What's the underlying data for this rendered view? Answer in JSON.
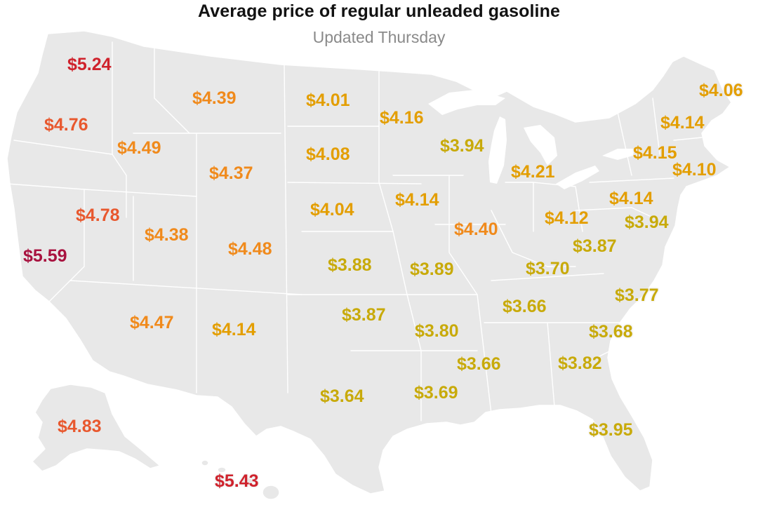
{
  "title": "Average price of regular unleaded gasoline",
  "subtitle": "Updated Thursday",
  "color_scale": {
    "yellow": "#c8aa0a",
    "amber": "#e39e00",
    "orange": "#f08a1c",
    "red_orange": "#e8582e",
    "red": "#cf222c",
    "dark_red": "#a8123f"
  },
  "prices": [
    {
      "state": "WA",
      "label": "$5.24",
      "value": 5.24
    },
    {
      "state": "MT",
      "label": "$4.39",
      "value": 4.39
    },
    {
      "state": "ND",
      "label": "$4.01",
      "value": 4.01
    },
    {
      "state": "ME",
      "label": "$4.06",
      "value": 4.06
    },
    {
      "state": "OR",
      "label": "$4.76",
      "value": 4.76
    },
    {
      "state": "MN",
      "label": "$4.16",
      "value": 4.16
    },
    {
      "state": "NH",
      "label": "$4.14",
      "value": 4.14
    },
    {
      "state": "ID",
      "label": "$4.49",
      "value": 4.49
    },
    {
      "state": "WI",
      "label": "$3.94",
      "value": 3.94
    },
    {
      "state": "SD",
      "label": "$4.08",
      "value": 4.08
    },
    {
      "state": "NY",
      "label": "$4.15",
      "value": 4.15
    },
    {
      "state": "WY",
      "label": "$4.37",
      "value": 4.37
    },
    {
      "state": "MI",
      "label": "$4.21",
      "value": 4.21
    },
    {
      "state": "MA",
      "label": "$4.10",
      "value": 4.1
    },
    {
      "state": "IA",
      "label": "$4.14",
      "value": 4.14
    },
    {
      "state": "PA",
      "label": "$4.14",
      "value": 4.14
    },
    {
      "state": "NE",
      "label": "$4.04",
      "value": 4.04
    },
    {
      "state": "NV",
      "label": "$4.78",
      "value": 4.78
    },
    {
      "state": "OH",
      "label": "$4.12",
      "value": 4.12
    },
    {
      "state": "UT",
      "label": "$4.38",
      "value": 4.38
    },
    {
      "state": "IL",
      "label": "$4.40",
      "value": 4.4
    },
    {
      "state": "MD",
      "label": "$3.94",
      "value": 3.94
    },
    {
      "state": "CA",
      "label": "$5.59",
      "value": 5.59
    },
    {
      "state": "CO",
      "label": "$4.48",
      "value": 4.48
    },
    {
      "state": "WV",
      "label": "$3.87",
      "value": 3.87
    },
    {
      "state": "KS",
      "label": "$3.88",
      "value": 3.88
    },
    {
      "state": "MO",
      "label": "$3.89",
      "value": 3.89
    },
    {
      "state": "KY",
      "label": "$3.70",
      "value": 3.7
    },
    {
      "state": "NC",
      "label": "$3.77",
      "value": 3.77
    },
    {
      "state": "TN",
      "label": "$3.66",
      "value": 3.66
    },
    {
      "state": "OK",
      "label": "$3.87",
      "value": 3.87
    },
    {
      "state": "AZ",
      "label": "$4.47",
      "value": 4.47
    },
    {
      "state": "NM",
      "label": "$4.14",
      "value": 4.14
    },
    {
      "state": "AR",
      "label": "$3.80",
      "value": 3.8
    },
    {
      "state": "SC",
      "label": "$3.68",
      "value": 3.68
    },
    {
      "state": "MS",
      "label": "$3.66",
      "value": 3.66
    },
    {
      "state": "GA",
      "label": "$3.82",
      "value": 3.82
    },
    {
      "state": "TX",
      "label": "$3.64",
      "value": 3.64
    },
    {
      "state": "LA",
      "label": "$3.69",
      "value": 3.69
    },
    {
      "state": "AK",
      "label": "$4.83",
      "value": 4.83
    },
    {
      "state": "FL",
      "label": "$3.95",
      "value": 3.95
    },
    {
      "state": "HI",
      "label": "$5.43",
      "value": 5.43
    }
  ]
}
